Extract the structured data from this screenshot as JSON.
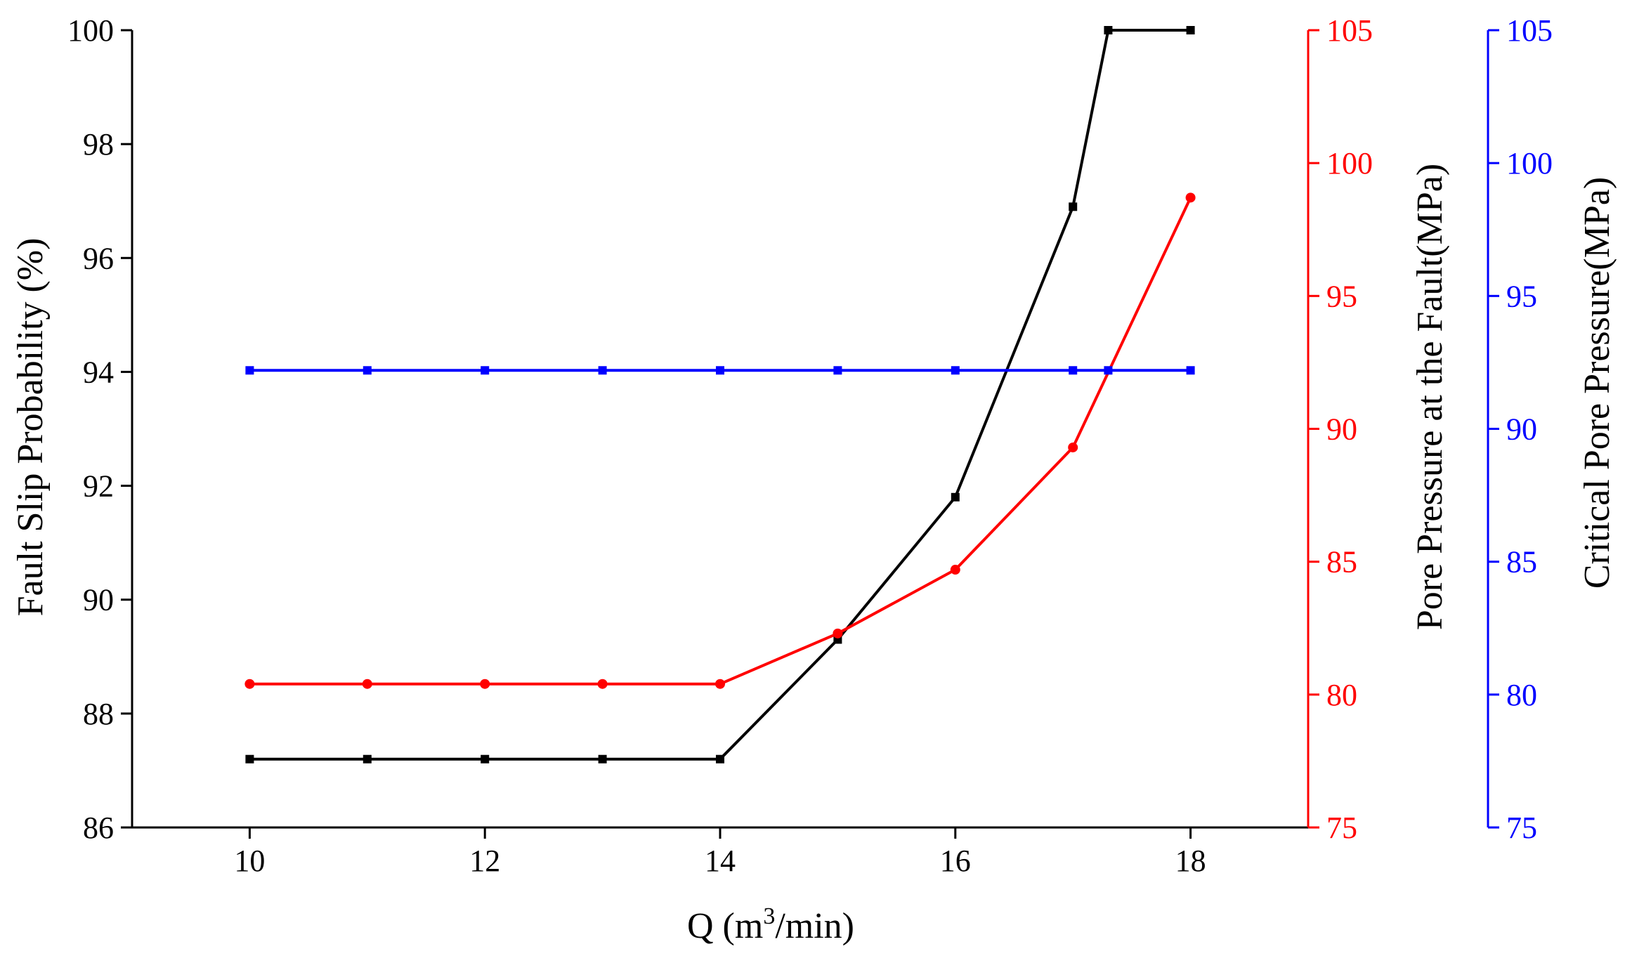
{
  "chart_data": {
    "type": "line",
    "x": [
      10,
      11,
      12,
      13,
      14,
      15,
      16,
      17,
      17.3,
      18
    ],
    "xlim": [
      9,
      19
    ],
    "xticks": [
      10,
      12,
      14,
      16,
      18
    ],
    "xlabel": {
      "prefix": "Q (m",
      "sup": "3",
      "suffix": "/min)"
    },
    "axes": {
      "left": {
        "label": "Fault Slip Probability (%)",
        "ylim": [
          86,
          100
        ],
        "ticks": [
          86,
          88,
          90,
          92,
          94,
          96,
          98,
          100
        ],
        "color": "#000000"
      },
      "right1": {
        "label": "Pore Pressure at the Fault(MPa)",
        "ylim": [
          75,
          105
        ],
        "ticks": [
          75,
          80,
          85,
          90,
          95,
          100,
          105
        ],
        "color": "#ff0000",
        "label_color": "#000000"
      },
      "right2": {
        "label": "Critical Pore Pressure(MPa)",
        "ylim": [
          75,
          105
        ],
        "ticks": [
          75,
          80,
          85,
          90,
          95,
          100,
          105
        ],
        "color": "#0000ff",
        "label_color": "#000000"
      }
    },
    "series": [
      {
        "axis": "left",
        "color": "#000000",
        "marker": "square",
        "x": [
          10,
          11,
          12,
          13,
          14,
          15,
          16,
          17,
          17.3,
          18
        ],
        "y": [
          87.2,
          87.2,
          87.2,
          87.2,
          87.2,
          89.3,
          91.8,
          96.9,
          100,
          100
        ]
      },
      {
        "axis": "right1",
        "color": "#ff0000",
        "marker": "circle",
        "x": [
          10,
          11,
          12,
          13,
          14,
          15,
          16,
          17,
          18
        ],
        "y": [
          80.4,
          80.4,
          80.4,
          80.4,
          80.4,
          82.3,
          84.7,
          89.3,
          98.7
        ]
      },
      {
        "axis": "right2",
        "color": "#0000ff",
        "marker": "square",
        "x": [
          10,
          11,
          12,
          13,
          14,
          15,
          16,
          17,
          17.3,
          18
        ],
        "y": [
          92.2,
          92.2,
          92.2,
          92.2,
          92.2,
          92.2,
          92.2,
          92.2,
          92.2,
          92.2
        ]
      }
    ]
  }
}
